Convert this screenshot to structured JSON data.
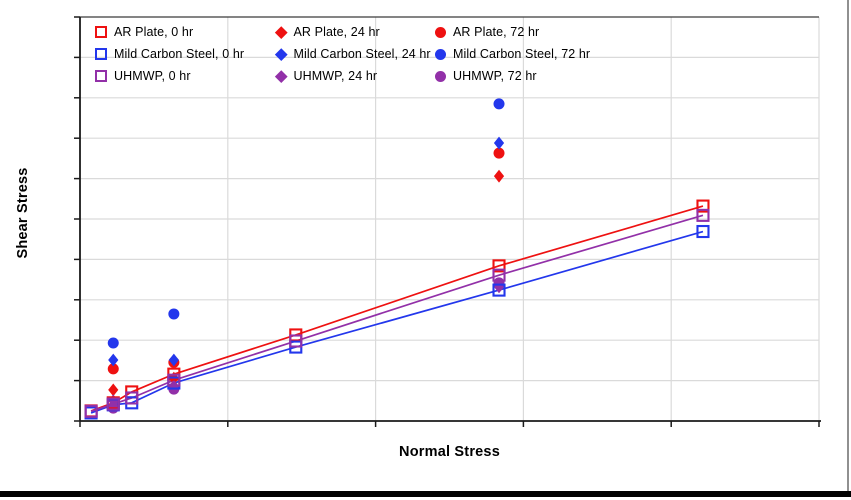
{
  "chart_data": {
    "type": "scatter",
    "title": "",
    "xlabel": "Normal Stress",
    "ylabel": "Shear Stress",
    "x_axis": {
      "min": 0,
      "max": 100,
      "major_gridlines": 5,
      "tick_labels_visible": false
    },
    "y_axis": {
      "min": 0,
      "max": 100,
      "major_gridlines": 10,
      "tick_labels_visible": false
    },
    "grid": "on",
    "legend_position": "top-inside",
    "axes_note": "axes have tick marks but no numeric labels; values below are percent of axis range",
    "series": [
      {
        "name": "AR Plate, 0 hr",
        "marker": "open-square",
        "color": "#EE1111",
        "line": true,
        "x": [
          1.5,
          4.5,
          7.0,
          12.7,
          29.2,
          56.7,
          84.3
        ],
        "y": [
          2.5,
          4.5,
          7.2,
          11.6,
          21.3,
          38.4,
          53.2
        ]
      },
      {
        "name": "Mild Carbon Steel, 0 hr",
        "marker": "open-square",
        "color": "#2337EC",
        "line": true,
        "x": [
          1.5,
          4.5,
          7.0,
          12.7,
          29.2,
          56.7,
          84.3
        ],
        "y": [
          2.0,
          4.0,
          4.5,
          9.4,
          18.3,
          32.4,
          46.9
        ]
      },
      {
        "name": "UHMWP, 0 hr",
        "marker": "open-square",
        "color": "#9230A8",
        "line": true,
        "x": [
          1.5,
          4.5,
          7.0,
          12.7,
          29.2,
          56.7,
          84.3
        ],
        "y": [
          2.4,
          4.2,
          5.7,
          10.1,
          19.8,
          36.1,
          50.9
        ]
      },
      {
        "name": "AR Plate, 24 hr",
        "marker": "diamond",
        "color": "#EE1111",
        "line": false,
        "x": [
          4.5,
          12.7,
          56.7
        ],
        "y": [
          7.7,
          10.6,
          60.6
        ]
      },
      {
        "name": "Mild Carbon Steel, 24 hr",
        "marker": "diamond",
        "color": "#2337EC",
        "line": false,
        "x": [
          4.5,
          12.7,
          56.7
        ],
        "y": [
          15.1,
          15.1,
          68.8
        ]
      },
      {
        "name": "UHMWP, 24 hr",
        "marker": "diamond",
        "color": "#9230A8",
        "line": false,
        "x": [
          4.5,
          12.7,
          56.7
        ],
        "y": [
          5.0,
          8.7,
          33.2
        ]
      },
      {
        "name": "AR Plate, 72 hr",
        "marker": "circle",
        "color": "#EE1111",
        "line": false,
        "x": [
          4.5,
          12.7,
          56.7
        ],
        "y": [
          12.9,
          14.5,
          66.3
        ]
      },
      {
        "name": "Mild Carbon Steel, 72 hr",
        "marker": "circle",
        "color": "#2337EC",
        "line": false,
        "x": [
          4.5,
          12.7,
          56.7
        ],
        "y": [
          19.3,
          26.5,
          78.5
        ]
      },
      {
        "name": "UHMWP, 72 hr",
        "marker": "circle",
        "color": "#9230A8",
        "line": false,
        "x": [
          4.5,
          12.7,
          56.7
        ],
        "y": [
          3.2,
          7.9,
          34.2
        ]
      }
    ]
  },
  "legend": {
    "columns": [
      {
        "marker": "open-square",
        "entries": [
          {
            "label": "AR Plate, 0 hr",
            "color": "#EE1111"
          },
          {
            "label": "Mild Carbon Steel, 0 hr",
            "color": "#2337EC"
          },
          {
            "label": "UHMWP, 0 hr",
            "color": "#9230A8"
          }
        ]
      },
      {
        "marker": "diamond",
        "entries": [
          {
            "label": "AR Plate, 24 hr",
            "color": "#EE1111"
          },
          {
            "label": "Mild Carbon Steel, 24 hr",
            "color": "#2337EC"
          },
          {
            "label": "UHMWP, 24 hr",
            "color": "#9230A8"
          }
        ]
      },
      {
        "marker": "circle",
        "entries": [
          {
            "label": "AR Plate, 72 hr",
            "color": "#EE1111"
          },
          {
            "label": "Mild Carbon Steel, 72 hr",
            "color": "#2337EC"
          },
          {
            "label": "UHMWP, 72 hr",
            "color": "#9230A8"
          }
        ]
      }
    ]
  },
  "colors": {
    "red": "#EE1111",
    "blue": "#2337EC",
    "purple": "#9230A8",
    "gridline": "#DADADA",
    "axis": "#1A1A1A",
    "top_border": "#3A3A3A",
    "right_frame": "#909090",
    "bottom_frame": "#000000",
    "background": "#FFFFFF"
  }
}
